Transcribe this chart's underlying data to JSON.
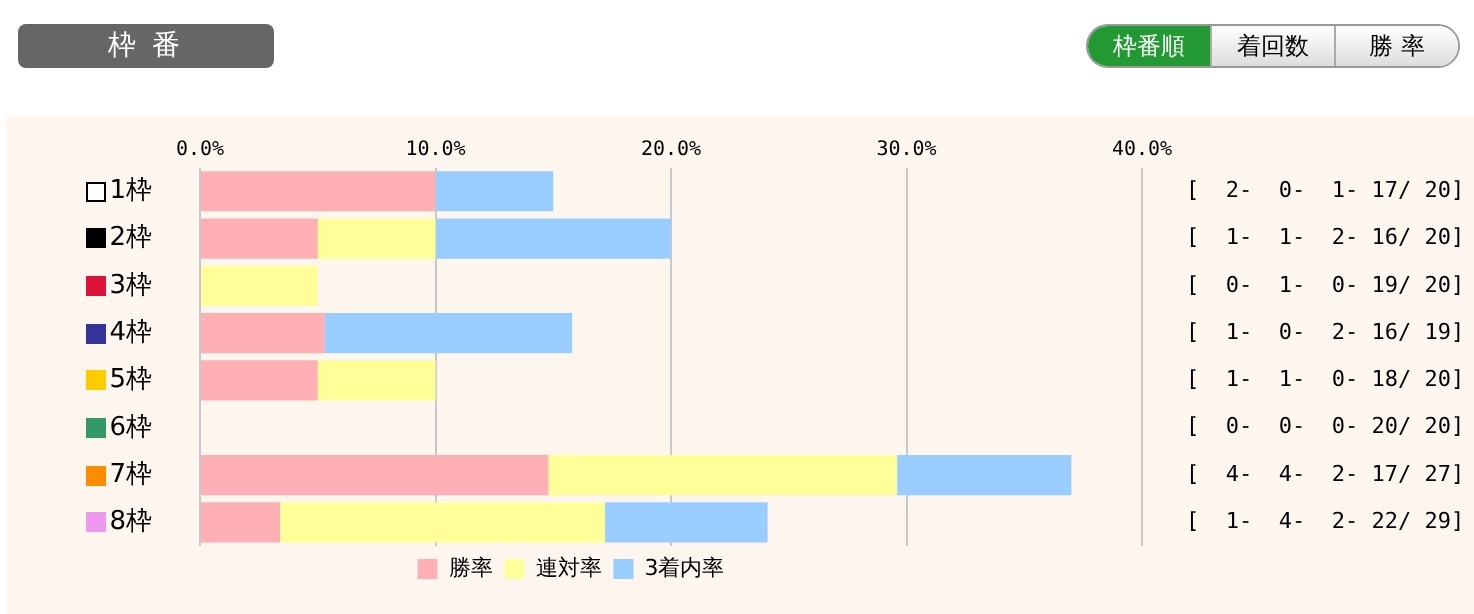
{
  "chart_data": {
    "type": "bar",
    "orientation": "horizontal",
    "stacked": true,
    "title": "枠 番",
    "categories": [
      "1枠",
      "2枠",
      "3枠",
      "4枠",
      "5枠",
      "6枠",
      "7枠",
      "8枠"
    ],
    "series": [
      {
        "name": "勝率",
        "color": "#ffb0b4",
        "values": [
          10,
          5,
          0,
          5.3,
          5,
          0,
          14.8,
          3.4
        ]
      },
      {
        "name": "連対率",
        "color": "#ffff99",
        "values": [
          0,
          5,
          5,
          0,
          5,
          0,
          14.8,
          13.8
        ]
      },
      {
        "name": "3着内率",
        "color": "#99ccff",
        "values": [
          5,
          10,
          0,
          10.5,
          0,
          0,
          7.4,
          6.9
        ]
      }
    ],
    "xlim": [
      0,
      40
    ],
    "xticks": [
      {
        "value": 0,
        "label": "0.0%"
      },
      {
        "value": 10,
        "label": "10.0%"
      },
      {
        "value": 20,
        "label": "20.0%"
      },
      {
        "value": 30,
        "label": "30.0%"
      },
      {
        "value": 40,
        "label": "40.0%"
      }
    ],
    "grid": "x",
    "legend": "bottom",
    "annotations": [
      "枠番順",
      "着回数",
      "勝 率",
      "[  2-  0-  1- 17/ 20]",
      "[  1-  1-  2- 16/ 20]",
      "[  0-  1-  0- 19/ 20]",
      "[  1-  0-  2- 16/ 19]",
      "[  1-  1-  0- 18/ 20]",
      "[  0-  0-  0- 20/ 20]",
      "[  4-  4-  2- 17/ 27]",
      "[  1-  4-  2- 22/ 29]"
    ]
  }
}
